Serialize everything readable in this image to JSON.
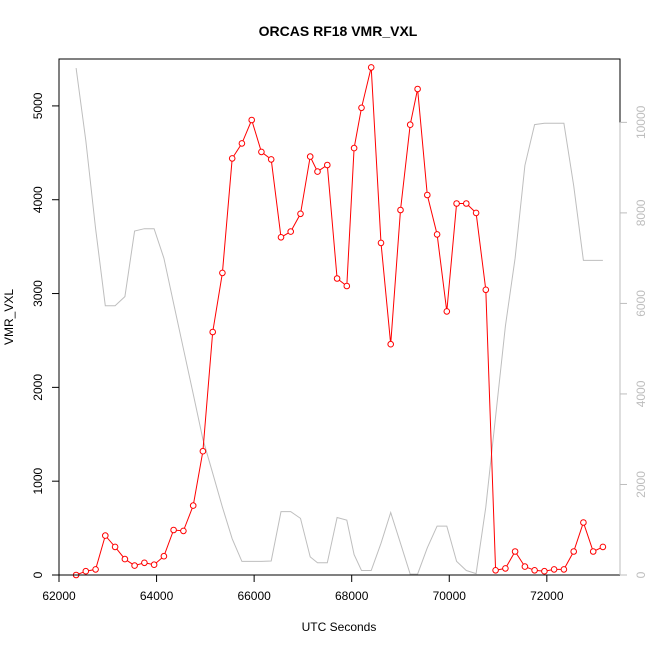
{
  "chart_data": {
    "type": "line",
    "title": "ORCAS RF18 VMR_VXL",
    "xlabel": "UTC Seconds",
    "ylabel": "VMR_VXL",
    "xlim": [
      62000,
      73500
    ],
    "ylim": [
      0,
      5500
    ],
    "y2lim": [
      0,
      11400
    ],
    "x_ticks": [
      "62000",
      "64000",
      "66000",
      "68000",
      "70000",
      "72000"
    ],
    "y_ticks": [
      "0",
      "1000",
      "2000",
      "3000",
      "4000",
      "5000"
    ],
    "y2_ticks": [
      "0",
      "2000",
      "4000",
      "6000",
      "8000",
      "10000"
    ],
    "colors": {
      "primary": "#ff0000",
      "secondary": "#bebebe",
      "axis": "#000000",
      "right_axis": "#bdbdbd"
    },
    "series": [
      {
        "axis": "left",
        "style": "line+open-circles",
        "color": "#ff0000",
        "x": [
          62350,
          62550,
          62750,
          62950,
          63150,
          63350,
          63550,
          63750,
          63950,
          64150,
          64350,
          64550,
          64750,
          64950,
          65150,
          65350,
          65550,
          65750,
          65950,
          66150,
          66350,
          66550,
          66750,
          66950,
          67150,
          67300,
          67500,
          67700,
          67900,
          68050,
          68200,
          68400,
          68600,
          68800,
          69000,
          69200,
          69350,
          69550,
          69750,
          69950,
          70150,
          70350,
          70550,
          70750,
          70950,
          71150,
          71350,
          71550,
          71750,
          71950,
          72150,
          72350,
          72550,
          72750,
          72950,
          73150
        ],
        "y": [
          0,
          40,
          60,
          420,
          300,
          170,
          100,
          130,
          110,
          200,
          480,
          470,
          740,
          1320,
          2590,
          3220,
          4440,
          4600,
          4850,
          4510,
          4430,
          3600,
          3660,
          3850,
          4460,
          4300,
          4370,
          3160,
          3080,
          4550,
          4980,
          5410,
          3540,
          2460,
          3890,
          4800,
          5180,
          4050,
          3630,
          2810,
          3960,
          3960,
          3860,
          3040,
          50,
          70,
          250,
          90,
          50,
          40,
          60,
          60,
          250,
          560,
          250,
          300
        ]
      },
      {
        "axis": "right",
        "style": "line",
        "color": "#bebebe",
        "x": [
          62350,
          62550,
          62750,
          62950,
          63150,
          63350,
          63550,
          63750,
          63950,
          64150,
          64350,
          64550,
          64750,
          64950,
          65150,
          65350,
          65550,
          65750,
          65950,
          66150,
          66350,
          66550,
          66750,
          66950,
          67150,
          67300,
          67500,
          67700,
          67900,
          68050,
          68200,
          68400,
          68600,
          68800,
          69000,
          69200,
          69350,
          69550,
          69750,
          69950,
          70150,
          70350,
          70550,
          70750,
          70950,
          71150,
          71350,
          71550,
          71750,
          71950,
          72150,
          72350,
          72550,
          72750,
          72950,
          73150
        ],
        "y": [
          11200,
          9600,
          7650,
          5950,
          5950,
          6150,
          7600,
          7650,
          7650,
          7000,
          6000,
          5000,
          4000,
          3000,
          2250,
          1500,
          800,
          300,
          300,
          300,
          310,
          1400,
          1400,
          1250,
          400,
          270,
          270,
          1270,
          1210,
          450,
          100,
          100,
          700,
          1380,
          700,
          20,
          20,
          600,
          1080,
          1080,
          300,
          100,
          30,
          1500,
          3500,
          5500,
          7000,
          9050,
          9950,
          9980,
          9980,
          9980,
          8600,
          6950,
          6950,
          6950
        ]
      }
    ]
  }
}
